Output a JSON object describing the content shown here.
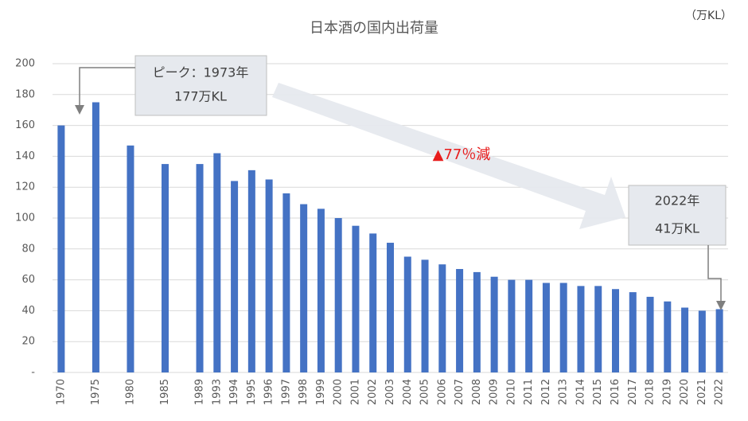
{
  "chart_data": {
    "type": "bar",
    "title": "日本酒の国内出荷量",
    "unit_label": "（万KL）",
    "categories": [
      "1970",
      null,
      "1975",
      null,
      "1980",
      null,
      "1985",
      null,
      "1989",
      "1993",
      "1994",
      "1995",
      "1996",
      "1997",
      "1998",
      "1999",
      "2000",
      "2001",
      "2002",
      "2003",
      "2004",
      "2005",
      "2006",
      "2007",
      "2008",
      "2009",
      "2010",
      "2011",
      "2012",
      "2013",
      "2014",
      "2015",
      "2016",
      "2017",
      "2018",
      "2019",
      "2020",
      "2021",
      "2022"
    ],
    "values": [
      160,
      null,
      175,
      null,
      147,
      null,
      135,
      null,
      135,
      142,
      124,
      131,
      125,
      116,
      109,
      106,
      100,
      95,
      90,
      84,
      75,
      73,
      70,
      67,
      65,
      62,
      60,
      60,
      58,
      58,
      56,
      56,
      54,
      52,
      49,
      46,
      42,
      40,
      41
    ],
    "color": "#4472c4",
    "ylim": [
      0,
      200
    ],
    "yticks": [
      {
        "value": 0,
        "label": "-"
      },
      20,
      40,
      60,
      80,
      100,
      120,
      140,
      160,
      180,
      200
    ],
    "grid": true,
    "annotations": {
      "peak_line1": "ピーク：1973年",
      "peak_line2": "177万KL",
      "decline": "▲77％減",
      "last_line1": "2022年",
      "last_line2": "41万KL"
    }
  }
}
